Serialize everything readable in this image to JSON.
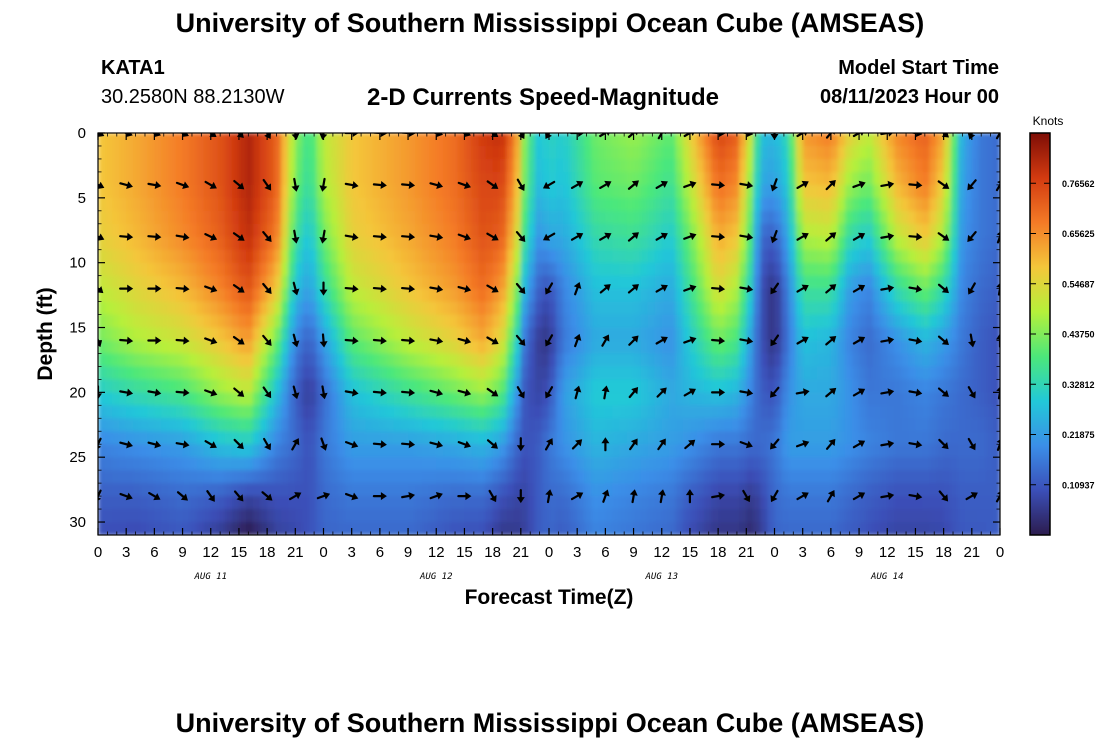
{
  "page": {
    "title": "University of Southern Mississippi Ocean Cube (AMSEAS)",
    "station_id": "KATA1",
    "station_coords": "30.2580N  88.2130W",
    "subtitle": "2-D Currents Speed-Magnitude",
    "model_start_label": "Model Start Time",
    "model_start_value": "08/11/2023 Hour 00",
    "footer_title": "University of Southern Mississippi Ocean Cube (AMSEAS)"
  },
  "colors": {
    "palette": [
      "#2c1c4e",
      "#3b4fb8",
      "#3b8ee8",
      "#22c8d8",
      "#4ce87a",
      "#b6f03a",
      "#f4c63a",
      "#f47a26",
      "#d23a10",
      "#7e0d06"
    ]
  },
  "chart_data": {
    "type": "heatmap",
    "xlabel": "Forecast Time(Z)",
    "ylabel": "Depth (ft)",
    "xlim": [
      0,
      96
    ],
    "ylim": [
      0,
      31
    ],
    "x_ticks": [
      0,
      3,
      6,
      9,
      12,
      15,
      18,
      21,
      24,
      27,
      30,
      33,
      36,
      39,
      42,
      45,
      48,
      51,
      54,
      57,
      60,
      63,
      66,
      69,
      72,
      75,
      78,
      81,
      84,
      87,
      90,
      93,
      96
    ],
    "x_tick_labels": [
      "0",
      "3",
      "6",
      "9",
      "12",
      "15",
      "18",
      "21",
      "0",
      "3",
      "6",
      "9",
      "12",
      "15",
      "18",
      "21",
      "0",
      "3",
      "6",
      "9",
      "12",
      "15",
      "18",
      "21",
      "0",
      "3",
      "6",
      "9",
      "12",
      "15",
      "18",
      "21",
      "0"
    ],
    "y_ticks": [
      0,
      5,
      10,
      15,
      20,
      25,
      30
    ],
    "y_tick_labels": [
      "0",
      "5",
      "10",
      "15",
      "20",
      "25",
      "30"
    ],
    "day_labels": [
      {
        "x": 12,
        "label": "AUG 11"
      },
      {
        "x": 36,
        "label": "AUG 12"
      },
      {
        "x": 60,
        "label": "AUG 13"
      },
      {
        "x": 84,
        "label": "AUG 14"
      }
    ],
    "colorbar": {
      "title": "Knots",
      "min": 0,
      "max": 0.875,
      "ticks": [
        0.10937,
        0.21875,
        0.32812,
        0.4375,
        0.54687,
        0.65625,
        0.76562
      ],
      "tick_labels": [
        "0.10937",
        "0.21875",
        "0.32812",
        "0.43750",
        "0.54687",
        "0.65625",
        "0.76562"
      ]
    },
    "vector_times": [
      0,
      3,
      6,
      9,
      12,
      15,
      18,
      21,
      24,
      27,
      30,
      33,
      36,
      39,
      42,
      45,
      48,
      51,
      54,
      57,
      60,
      63,
      66,
      69,
      72,
      75,
      78,
      81,
      84,
      87,
      90,
      93,
      96
    ],
    "vector_depths": [
      0,
      4,
      8,
      12,
      16,
      20,
      24,
      28
    ],
    "speed_profiles": [
      {
        "t": 0,
        "values": [
          0.58,
          0.58,
          0.56,
          0.5,
          0.42,
          0.3,
          0.18,
          0.12
        ]
      },
      {
        "t": 4,
        "values": [
          0.62,
          0.62,
          0.6,
          0.55,
          0.48,
          0.34,
          0.2,
          0.12
        ]
      },
      {
        "t": 9,
        "values": [
          0.68,
          0.68,
          0.66,
          0.6,
          0.52,
          0.38,
          0.22,
          0.14
        ]
      },
      {
        "t": 13,
        "values": [
          0.74,
          0.74,
          0.72,
          0.67,
          0.58,
          0.46,
          0.28,
          0.12
        ]
      },
      {
        "t": 16,
        "values": [
          0.82,
          0.82,
          0.8,
          0.74,
          0.64,
          0.5,
          0.3,
          0.08
        ]
      },
      {
        "t": 19,
        "values": [
          0.72,
          0.72,
          0.68,
          0.58,
          0.42,
          0.28,
          0.18,
          0.1
        ]
      },
      {
        "t": 21,
        "values": [
          0.45,
          0.42,
          0.36,
          0.28,
          0.18,
          0.12,
          0.14,
          0.1
        ]
      },
      {
        "t": 22.5,
        "values": [
          0.36,
          0.34,
          0.28,
          0.22,
          0.12,
          0.06,
          0.1,
          0.1
        ]
      },
      {
        "t": 24,
        "values": [
          0.5,
          0.48,
          0.42,
          0.34,
          0.22,
          0.14,
          0.16,
          0.14
        ]
      },
      {
        "t": 27,
        "values": [
          0.58,
          0.58,
          0.56,
          0.5,
          0.4,
          0.28,
          0.22,
          0.16
        ]
      },
      {
        "t": 33,
        "values": [
          0.64,
          0.64,
          0.62,
          0.58,
          0.5,
          0.36,
          0.22,
          0.16
        ]
      },
      {
        "t": 38,
        "values": [
          0.7,
          0.7,
          0.68,
          0.64,
          0.56,
          0.42,
          0.24,
          0.14
        ]
      },
      {
        "t": 41,
        "values": [
          0.78,
          0.76,
          0.74,
          0.7,
          0.62,
          0.46,
          0.26,
          0.14
        ]
      },
      {
        "t": 43,
        "values": [
          0.8,
          0.76,
          0.72,
          0.64,
          0.54,
          0.4,
          0.22,
          0.1
        ]
      },
      {
        "t": 44.5,
        "values": [
          0.66,
          0.62,
          0.56,
          0.46,
          0.34,
          0.22,
          0.14,
          0.08
        ]
      },
      {
        "t": 45.5,
        "values": [
          0.42,
          0.4,
          0.34,
          0.24,
          0.14,
          0.1,
          0.1,
          0.08
        ]
      },
      {
        "t": 47,
        "values": [
          0.28,
          0.26,
          0.2,
          0.12,
          0.06,
          0.08,
          0.12,
          0.12
        ]
      },
      {
        "t": 48,
        "values": [
          0.32,
          0.3,
          0.24,
          0.1,
          0.05,
          0.1,
          0.16,
          0.14
        ]
      },
      {
        "t": 49.5,
        "values": [
          0.3,
          0.28,
          0.24,
          0.18,
          0.16,
          0.22,
          0.2,
          0.14
        ]
      },
      {
        "t": 53,
        "values": [
          0.42,
          0.4,
          0.34,
          0.28,
          0.24,
          0.3,
          0.26,
          0.2
        ]
      },
      {
        "t": 57,
        "values": [
          0.46,
          0.42,
          0.36,
          0.28,
          0.24,
          0.3,
          0.24,
          0.18
        ]
      },
      {
        "t": 61,
        "values": [
          0.4,
          0.36,
          0.3,
          0.24,
          0.2,
          0.24,
          0.22,
          0.16
        ]
      },
      {
        "t": 63,
        "values": [
          0.56,
          0.5,
          0.42,
          0.36,
          0.3,
          0.26,
          0.2,
          0.12
        ]
      },
      {
        "t": 66,
        "values": [
          0.76,
          0.7,
          0.62,
          0.54,
          0.42,
          0.28,
          0.16,
          0.08
        ]
      },
      {
        "t": 68,
        "values": [
          0.72,
          0.66,
          0.58,
          0.48,
          0.38,
          0.26,
          0.16,
          0.08
        ]
      },
      {
        "t": 69.5,
        "values": [
          0.5,
          0.44,
          0.38,
          0.3,
          0.22,
          0.18,
          0.14,
          0.06
        ]
      },
      {
        "t": 70.5,
        "values": [
          0.28,
          0.24,
          0.14,
          0.1,
          0.1,
          0.12,
          0.14,
          0.08
        ]
      },
      {
        "t": 72,
        "values": [
          0.26,
          0.22,
          0.12,
          0.04,
          0.04,
          0.1,
          0.16,
          0.14
        ]
      },
      {
        "t": 73.5,
        "values": [
          0.34,
          0.3,
          0.24,
          0.18,
          0.16,
          0.2,
          0.22,
          0.16
        ]
      },
      {
        "t": 75,
        "values": [
          0.64,
          0.58,
          0.48,
          0.36,
          0.28,
          0.24,
          0.22,
          0.16
        ]
      },
      {
        "t": 78,
        "values": [
          0.68,
          0.6,
          0.5,
          0.36,
          0.26,
          0.24,
          0.22,
          0.16
        ]
      },
      {
        "t": 80,
        "values": [
          0.56,
          0.46,
          0.34,
          0.22,
          0.18,
          0.2,
          0.2,
          0.14
        ]
      },
      {
        "t": 82,
        "values": [
          0.5,
          0.42,
          0.3,
          0.18,
          0.14,
          0.16,
          0.18,
          0.12
        ]
      },
      {
        "t": 85,
        "values": [
          0.66,
          0.6,
          0.5,
          0.34,
          0.2,
          0.16,
          0.16,
          0.1
        ]
      },
      {
        "t": 88,
        "values": [
          0.72,
          0.68,
          0.58,
          0.42,
          0.26,
          0.18,
          0.16,
          0.1
        ]
      },
      {
        "t": 90,
        "values": [
          0.62,
          0.56,
          0.48,
          0.34,
          0.22,
          0.16,
          0.14,
          0.1
        ]
      },
      {
        "t": 92,
        "values": [
          0.24,
          0.22,
          0.2,
          0.18,
          0.16,
          0.14,
          0.14,
          0.12
        ]
      },
      {
        "t": 94,
        "values": [
          0.16,
          0.16,
          0.16,
          0.14,
          0.12,
          0.12,
          0.14,
          0.12
        ]
      },
      {
        "t": 96,
        "values": [
          0.14,
          0.14,
          0.14,
          0.12,
          0.1,
          0.1,
          0.12,
          0.12
        ]
      }
    ],
    "vector_directions_deg": [
      [
        25,
        25,
        25,
        40,
        70,
        90,
        115,
        115
      ],
      [
        20,
        15,
        5,
        0,
        5,
        10,
        15,
        20
      ],
      [
        20,
        10,
        5,
        0,
        0,
        10,
        15,
        30
      ],
      [
        25,
        20,
        10,
        5,
        5,
        5,
        10,
        40
      ],
      [
        35,
        30,
        25,
        20,
        20,
        20,
        30,
        55
      ],
      [
        45,
        40,
        35,
        35,
        35,
        40,
        45,
        50
      ],
      [
        60,
        55,
        50,
        50,
        50,
        55,
        60,
        40
      ],
      [
        80,
        80,
        80,
        75,
        75,
        75,
        -60,
        -30
      ],
      [
        100,
        100,
        100,
        90,
        85,
        80,
        70,
        -20
      ],
      [
        0,
        10,
        10,
        5,
        5,
        10,
        20,
        20
      ],
      [
        5,
        5,
        5,
        5,
        5,
        5,
        5,
        0
      ],
      [
        5,
        5,
        5,
        5,
        5,
        5,
        5,
        -10
      ],
      [
        15,
        15,
        10,
        10,
        10,
        15,
        15,
        -20
      ],
      [
        20,
        20,
        20,
        15,
        15,
        15,
        20,
        0
      ],
      [
        35,
        35,
        30,
        30,
        30,
        35,
        40,
        60
      ],
      [
        60,
        60,
        50,
        50,
        50,
        60,
        90,
        90
      ],
      [
        120,
        150,
        150,
        120,
        120,
        120,
        -60,
        -80
      ],
      [
        0,
        -30,
        -30,
        -70,
        -70,
        -75,
        -45,
        -30
      ],
      [
        -30,
        -30,
        -30,
        -40,
        -60,
        -80,
        -90,
        -70
      ],
      [
        -40,
        -40,
        -40,
        -40,
        -45,
        -50,
        -55,
        -80
      ],
      [
        -60,
        -30,
        -30,
        -30,
        -30,
        -45,
        -55,
        -80
      ],
      [
        -30,
        -20,
        -20,
        -20,
        -20,
        -30,
        -40,
        -90
      ],
      [
        5,
        5,
        5,
        5,
        5,
        0,
        0,
        -10
      ],
      [
        10,
        10,
        10,
        10,
        10,
        10,
        20,
        60
      ],
      [
        90,
        110,
        110,
        125,
        125,
        130,
        130,
        120
      ],
      [
        -30,
        -30,
        -30,
        -30,
        -30,
        -10,
        -20,
        -30
      ],
      [
        -50,
        -45,
        -40,
        -40,
        -40,
        -40,
        -50,
        -60
      ],
      [
        -30,
        -20,
        -30,
        -30,
        -30,
        -30,
        -30,
        -30
      ],
      [
        -10,
        -10,
        -10,
        -10,
        -10,
        -10,
        -10,
        -10
      ],
      [
        10,
        5,
        5,
        10,
        10,
        10,
        10,
        10
      ],
      [
        40,
        35,
        35,
        40,
        40,
        40,
        45,
        50
      ],
      [
        110,
        130,
        130,
        120,
        80,
        60,
        60,
        -30
      ],
      [
        -60,
        -60,
        -70,
        -80,
        -90,
        -80,
        -70,
        -60
      ]
    ]
  }
}
